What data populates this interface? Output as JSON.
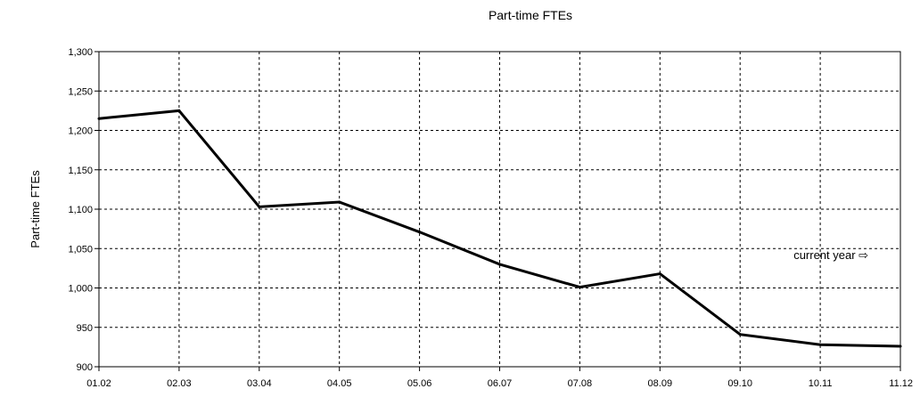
{
  "chart_data": {
    "type": "line",
    "title": "Part-time FTEs",
    "xlabel": "",
    "ylabel": "Part-time FTEs",
    "categories": [
      "01.02",
      "02.03",
      "03.04",
      "04.05",
      "05.06",
      "06.07",
      "07.08",
      "08.09",
      "09.10",
      "10.11",
      "11.12"
    ],
    "y_ticks": [
      "900",
      "950",
      "1,000",
      "1,050",
      "1,100",
      "1,150",
      "1,200",
      "1,250",
      "1,300"
    ],
    "ylim": [
      900,
      1300
    ],
    "series": [
      {
        "values": [
          1215,
          1225,
          1103,
          1109,
          1071,
          1030,
          1001,
          1018,
          941,
          928,
          926
        ]
      }
    ],
    "grid": true,
    "grid_style": "dashed",
    "line_color": "#000000",
    "annotation": "current year ⇨"
  }
}
